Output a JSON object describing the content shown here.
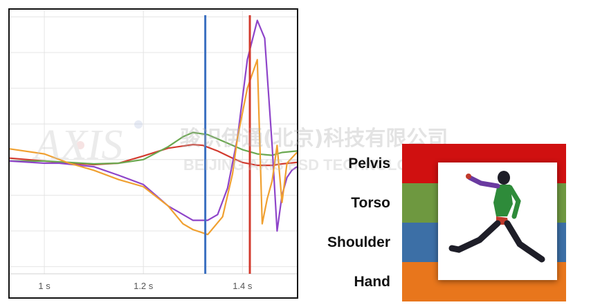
{
  "chart_data": {
    "type": "line",
    "xlim": [
      0.93,
      1.51
    ],
    "ylim": [
      -1.6,
      2.1
    ],
    "x_ticks": [
      {
        "value": 1.0,
        "label": "1 s"
      },
      {
        "value": 1.2,
        "label": "1.2 s"
      },
      {
        "value": 1.4,
        "label": "1.4 s"
      }
    ],
    "grid": true,
    "vlines": [
      {
        "x": 1.325,
        "color": "#3a6fc0"
      },
      {
        "x": 1.415,
        "color": "#d23a2e"
      }
    ],
    "series": [
      {
        "color": "#d23a2e",
        "x": [
          0.93,
          1.0,
          1.05,
          1.1,
          1.15,
          1.2,
          1.25,
          1.3,
          1.32,
          1.35,
          1.38,
          1.4,
          1.43,
          1.46,
          1.48,
          1.51
        ],
        "y": [
          0.02,
          -0.02,
          -0.05,
          -0.07,
          -0.05,
          0.05,
          0.16,
          0.21,
          0.2,
          0.12,
          0.02,
          -0.04,
          -0.08,
          -0.08,
          -0.06,
          -0.04
        ]
      },
      {
        "color": "#6aa84f",
        "x": [
          0.93,
          1.0,
          1.05,
          1.1,
          1.15,
          1.2,
          1.25,
          1.28,
          1.3,
          1.33,
          1.36,
          1.4,
          1.43,
          1.46,
          1.48,
          1.51
        ],
        "y": [
          -0.02,
          -0.02,
          -0.04,
          -0.06,
          -0.05,
          0.0,
          0.18,
          0.32,
          0.38,
          0.35,
          0.26,
          0.14,
          0.08,
          0.06,
          0.1,
          0.12
        ]
      },
      {
        "color": "#8e44c9",
        "x": [
          0.93,
          1.0,
          1.03,
          1.1,
          1.15,
          1.2,
          1.25,
          1.3,
          1.33,
          1.35,
          1.37,
          1.39,
          1.41,
          1.43,
          1.445,
          1.46,
          1.47,
          1.48,
          1.49,
          1.5,
          1.51
        ],
        "y": [
          -0.02,
          -0.05,
          -0.05,
          -0.1,
          -0.22,
          -0.35,
          -0.65,
          -0.85,
          -0.85,
          -0.77,
          -0.4,
          0.3,
          1.4,
          1.95,
          1.7,
          0.2,
          -1.0,
          -0.5,
          -0.25,
          -0.15,
          -0.1
        ]
      },
      {
        "color": "#f0a030",
        "x": [
          0.93,
          1.0,
          1.05,
          1.1,
          1.15,
          1.2,
          1.25,
          1.28,
          1.3,
          1.33,
          1.36,
          1.38,
          1.39,
          1.41,
          1.43,
          1.44,
          1.45,
          1.46,
          1.47,
          1.48,
          1.49,
          1.51
        ],
        "y": [
          0.15,
          0.08,
          -0.05,
          -0.15,
          -0.28,
          -0.38,
          -0.65,
          -0.9,
          -0.98,
          -1.05,
          -0.8,
          -0.2,
          0.3,
          1.0,
          1.4,
          -0.9,
          -0.55,
          -0.3,
          0.2,
          -0.6,
          -0.05,
          0.1
        ]
      }
    ]
  },
  "legend": {
    "items": [
      {
        "label": "Pelvis",
        "color": "#d01010"
      },
      {
        "label": "Torso",
        "color": "#6e9840"
      },
      {
        "label": "Shoulder",
        "color": "#3c6fa6"
      },
      {
        "label": "Hand",
        "color": "#e8761c"
      }
    ]
  },
  "watermark": {
    "logo_text": "AXIS",
    "company_cn": "骏识伊通(北京)科技有限公司",
    "company_en": "BEIJING AXIS ESD TECHNOLOGY CO.,LTD."
  }
}
